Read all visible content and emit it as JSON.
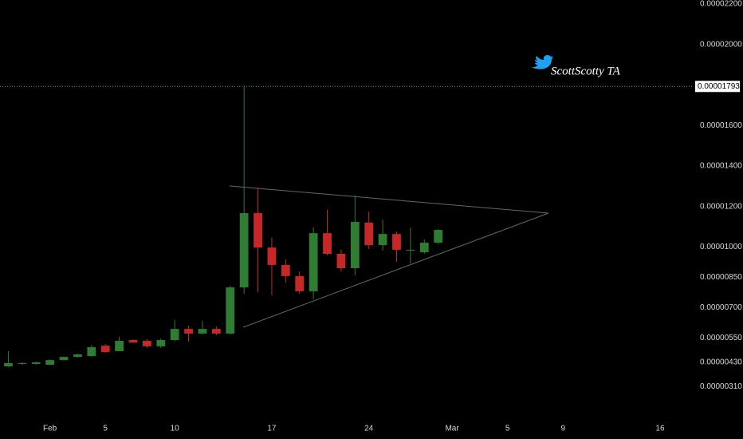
{
  "chart_data": {
    "type": "candlestick",
    "watermark": "ScottScotty TA",
    "x": [
      -2,
      -1,
      0,
      1,
      2,
      3,
      4,
      5,
      6,
      7,
      8,
      9,
      10,
      11,
      12,
      13,
      14,
      15,
      16,
      17,
      18,
      19,
      20,
      21,
      22,
      23,
      24,
      25,
      26,
      27,
      28,
      29
    ],
    "open": [
      4.1e-06,
      4.22e-06,
      4.22e-06,
      4.18e-06,
      4.41e-06,
      4.57e-06,
      4.61e-06,
      5.12e-06,
      4.85e-06,
      5.4e-06,
      5.36e-06,
      5.09e-06,
      5.4e-06,
      5.95e-06,
      5.72e-06,
      5.95e-06,
      5.72e-06,
      8e-06,
      1.167e-05,
      9.97e-06,
      9.11e-06,
      8.56e-06,
      7.81e-06,
      1.068e-05,
      9.66e-06,
      8.95e-06,
      1.12e-05,
      1.009e-05,
      1.064e-05,
      9.82e-06,
      9.74e-06,
      1.021e-05
    ],
    "high": [
      4.85e-06,
      4.3e-06,
      4.34e-06,
      4.45e-06,
      4.57e-06,
      4.73e-06,
      5.16e-06,
      5.2e-06,
      5.56e-06,
      5.44e-06,
      5.44e-06,
      5.48e-06,
      6.39e-06,
      6.11e-06,
      6.35e-06,
      6.07e-06,
      8.08e-06,
      1.793e-05,
      1.293e-05,
      1.045e-05,
      9.38e-06,
      8.79e-06,
      1.096e-05,
      1.183e-05,
      9.86e-06,
      1.254e-05,
      1.175e-05,
      1.135e-05,
      1.076e-05,
      1.096e-05,
      1.037e-05,
      1.088e-05
    ],
    "low": [
      4.06e-06,
      4.18e-06,
      4.18e-06,
      4.22e-06,
      4.38e-06,
      4.53e-06,
      4.57e-06,
      4.77e-06,
      4.85e-06,
      5.28e-06,
      5.01e-06,
      5.01e-06,
      5.32e-06,
      5.32e-06,
      5.68e-06,
      5.64e-06,
      5.68e-06,
      7.69e-06,
      7.77e-06,
      7.61e-06,
      8.24e-06,
      7.69e-06,
      7.41e-06,
      9.58e-06,
      8.79e-06,
      8.59e-06,
      9.9e-06,
      9.82e-06,
      9.27e-06,
      9.19e-06,
      9.66e-06,
      1.013e-05
    ],
    "close": [
      4.26e-06,
      4.26e-06,
      4.3e-06,
      4.41e-06,
      4.57e-06,
      4.69e-06,
      5.05e-06,
      4.81e-06,
      5.36e-06,
      5.28e-06,
      5.09e-06,
      5.4e-06,
      5.95e-06,
      5.72e-06,
      5.95e-06,
      5.72e-06,
      8e-06,
      1.167e-05,
      9.97e-06,
      9.11e-06,
      8.56e-06,
      7.81e-06,
      1.068e-05,
      9.66e-06,
      8.95e-06,
      1.124e-05,
      1.009e-05,
      1.064e-05,
      9.86e-06,
      9.86e-06,
      1.021e-05,
      1.084e-05
    ],
    "up_color": "#2e7d32",
    "down_color": "#c62828",
    "xlim": [
      -2.6,
      47.3
    ],
    "xticks": [
      {
        "value": 1,
        "label": "Feb"
      },
      5,
      10,
      17,
      24,
      {
        "value": 30,
        "label": "Mar"
      },
      {
        "value": 34,
        "label": "5"
      },
      {
        "value": 38,
        "label": "9"
      },
      {
        "value": 45,
        "label": "16"
      }
    ],
    "ylim": [
      1.3e-06,
      2.22e-05
    ],
    "yticks": [
      {
        "value": 2.2e-05,
        "label": "0.00002200"
      },
      {
        "value": 2e-05,
        "label": "0.00002000"
      },
      {
        "value": 1.6e-05,
        "label": "0.00001600"
      },
      {
        "value": 1.4e-05,
        "label": "0.00001400"
      },
      {
        "value": 1.2e-05,
        "label": "0.00001200"
      },
      {
        "value": 1e-05,
        "label": "0.00001000"
      },
      {
        "value": 8.5e-06,
        "label": "0.00000850"
      },
      {
        "value": 7e-06,
        "label": "0.00000700"
      },
      {
        "value": 5.5e-06,
        "label": "0.00000550"
      },
      {
        "value": 4.3e-06,
        "label": "0.00000430"
      },
      {
        "value": 3.1e-06,
        "label": "0.00000310"
      }
    ],
    "price_line": {
      "value": 1.793e-05,
      "label": "0.00001793"
    }
  }
}
